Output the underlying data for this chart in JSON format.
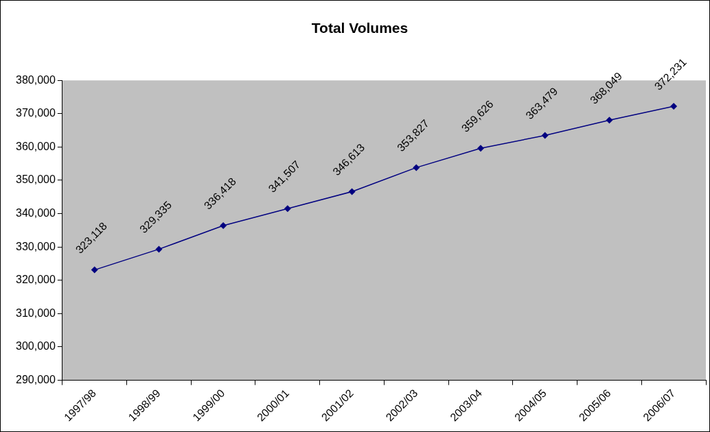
{
  "chart_data": {
    "type": "line",
    "title": "Total Volumes",
    "categories": [
      "1997/98",
      "1998/99",
      "1999/00",
      "2000/01",
      "2001/02",
      "2002/03",
      "2003/04",
      "2004/05",
      "2005/06",
      "2006/07"
    ],
    "series": [
      {
        "color": "#000080",
        "values": [
          323118,
          329335,
          336418,
          341507,
          346613,
          353827,
          359626,
          363479,
          368049,
          372231
        ],
        "value_labels": [
          "323,118",
          "329,335",
          "336,418",
          "341,507",
          "346,613",
          "353,827",
          "359,626",
          "363,479",
          "368,049",
          "372,231"
        ]
      }
    ],
    "ylim": [
      290000,
      380000
    ],
    "yticks": [
      {
        "value": 290000,
        "label": "290,000"
      },
      {
        "value": 300000,
        "label": "300,000"
      },
      {
        "value": 310000,
        "label": "310,000"
      },
      {
        "value": 320000,
        "label": "320,000"
      },
      {
        "value": 330000,
        "label": "330,000"
      },
      {
        "value": 340000,
        "label": "340,000"
      },
      {
        "value": 350000,
        "label": "350,000"
      },
      {
        "value": 360000,
        "label": "360,000"
      },
      {
        "value": 370000,
        "label": "370,000"
      },
      {
        "value": 380000,
        "label": "380,000"
      }
    ],
    "grid": false,
    "legend": false,
    "marker": "diamond",
    "line_style": "solid"
  }
}
